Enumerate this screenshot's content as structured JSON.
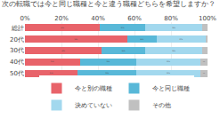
{
  "chart_data": {
    "type": "bar",
    "orientation": "horizontal",
    "stacked": true,
    "title": "次の転職では今と同じ職種と今と違う職種どちらを希望しますか？",
    "categories": [
      "総計",
      "20代",
      "30代",
      "40代",
      "50代"
    ],
    "series": [
      {
        "name": "今と別の職種",
        "color": "#e8636a",
        "values": [
          41,
          56,
          42,
          30,
          29
        ],
        "value_labels": [
          "41%",
          "56%",
          "42%",
          "30%",
          "29%"
        ]
      },
      {
        "name": "今と同じ職種",
        "color": "#58b8d8",
        "values": [
          25,
          16,
          24,
          31,
          32
        ],
        "value_labels": [
          "25%",
          "16%",
          "24%",
          "31%",
          "32%"
        ]
      },
      {
        "name": "決めていない",
        "color": "#a2d8ee",
        "values": [
          31,
          27,
          31,
          35,
          35
        ],
        "value_labels": [
          "31%",
          "27%",
          "31%",
          "35%",
          "35%"
        ]
      },
      {
        "name": "その他",
        "color": "#c0c0c0",
        "values": [
          3,
          1,
          3,
          4,
          4
        ],
        "value_labels": [
          "3%",
          null,
          "3%",
          "4%",
          "4%"
        ]
      }
    ],
    "xlim": [
      0,
      100
    ],
    "xticks": [
      {
        "value": 0,
        "label": "0%"
      },
      {
        "value": 20,
        "label": "20%"
      },
      {
        "value": 40,
        "label": "40%"
      },
      {
        "value": 60,
        "label": "60%"
      },
      {
        "value": 80,
        "label": "80%"
      },
      {
        "value": 100,
        "label": "100%"
      }
    ],
    "grid": true,
    "data_labels": true,
    "legend": "bottom"
  }
}
